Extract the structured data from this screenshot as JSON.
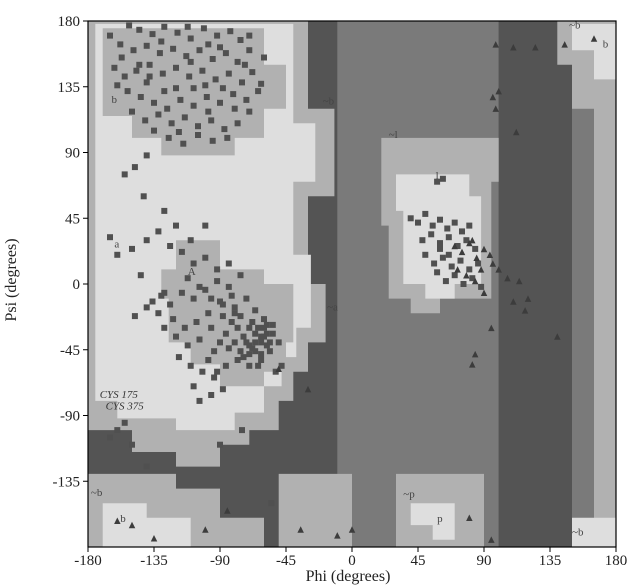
{
  "chart_data": {
    "type": "scatter",
    "title": "",
    "xlabel": "Phi (degrees)",
    "ylabel": "Psi (degrees)",
    "xlim": [
      -180,
      180
    ],
    "ylim": [
      -180,
      180
    ],
    "xticks": [
      -180,
      -135,
      -90,
      -45,
      0,
      45,
      90,
      135,
      180
    ],
    "yticks": [
      -135,
      -90,
      -45,
      0,
      45,
      90,
      135,
      180
    ],
    "grid": false,
    "legend": "none",
    "colors": {
      "most_favoured": "#545454",
      "additional": "#7a7a7a",
      "generous": "#b1b1b1",
      "disallowed": "#dedede",
      "residue_square": "#505050",
      "glycine_triangle": "#3c3c3c",
      "axis": "#000000",
      "region_label": "#444444"
    },
    "region_labels": [
      {
        "text": "b",
        "phi": -164,
        "psi": 124
      },
      {
        "text": "~b",
        "phi": -20,
        "psi": 123
      },
      {
        "text": "~l",
        "phi": 25,
        "psi": 100
      },
      {
        "text": "l",
        "phi": 57,
        "psi": 72
      },
      {
        "text": "a",
        "phi": -162,
        "psi": 25
      },
      {
        "text": "A",
        "phi": -112,
        "psi": 6
      },
      {
        "text": "~a",
        "phi": -17,
        "psi": -18
      },
      {
        "text": "~b",
        "phi": -178,
        "psi": -145
      },
      {
        "text": "b",
        "phi": -158,
        "psi": -163
      },
      {
        "text": "~p",
        "phi": 35,
        "psi": -146
      },
      {
        "text": "p",
        "phi": 58,
        "psi": -163
      },
      {
        "text": "~b",
        "phi": 150,
        "psi": -172
      },
      {
        "text": "~b",
        "phi": 148,
        "psi": 175
      },
      {
        "text": "b",
        "phi": 171,
        "psi": 162
      }
    ],
    "annotations": [
      {
        "text": "CYS 175",
        "phi": -172,
        "psi": -78
      },
      {
        "text": "CYS 375",
        "phi": -168,
        "psi": -86
      }
    ],
    "series": [
      {
        "marker": "square",
        "points": [
          [
            -152,
            177
          ],
          [
            -145,
            174
          ],
          [
            -136,
            171
          ],
          [
            -128,
            176
          ],
          [
            -119,
            172
          ],
          [
            -110,
            168
          ],
          [
            -101,
            175
          ],
          [
            -92,
            170
          ],
          [
            -83,
            173
          ],
          [
            -76,
            167
          ],
          [
            -70,
            160
          ],
          [
            -78,
            152
          ],
          [
            -86,
            158
          ],
          [
            -95,
            154
          ],
          [
            -104,
            160
          ],
          [
            -113,
            156
          ],
          [
            -122,
            161
          ],
          [
            -131,
            158
          ],
          [
            -140,
            163
          ],
          [
            -149,
            160
          ],
          [
            -157,
            155
          ],
          [
            -162,
            148
          ],
          [
            -155,
            142
          ],
          [
            -147,
            146
          ],
          [
            -138,
            150
          ],
          [
            -129,
            144
          ],
          [
            -120,
            148
          ],
          [
            -111,
            142
          ],
          [
            -102,
            146
          ],
          [
            -93,
            140
          ],
          [
            -84,
            144
          ],
          [
            -75,
            138
          ],
          [
            -68,
            145
          ],
          [
            -64,
            132
          ],
          [
            -72,
            126
          ],
          [
            -81,
            130
          ],
          [
            -90,
            124
          ],
          [
            -99,
            128
          ],
          [
            -108,
            122
          ],
          [
            -117,
            126
          ],
          [
            -126,
            120
          ],
          [
            -135,
            124
          ],
          [
            -144,
            128
          ],
          [
            -153,
            132
          ],
          [
            -160,
            136
          ],
          [
            -150,
            118
          ],
          [
            -141,
            112
          ],
          [
            -132,
            116
          ],
          [
            -123,
            110
          ],
          [
            -114,
            114
          ],
          [
            -105,
            108
          ],
          [
            -96,
            112
          ],
          [
            -87,
            106
          ],
          [
            -78,
            110
          ],
          [
            -70,
            118
          ],
          [
            -85,
            100
          ],
          [
            -95,
            98
          ],
          [
            -105,
            102
          ],
          [
            -115,
            96
          ],
          [
            -125,
            100
          ],
          [
            -135,
            105
          ],
          [
            -110,
            152
          ],
          [
            -100,
            136
          ],
          [
            -120,
            134
          ],
          [
            -140,
            138
          ],
          [
            -130,
            166
          ],
          [
            -90,
            162
          ],
          [
            -80,
            120
          ],
          [
            -145,
            150
          ],
          [
            -165,
            170
          ],
          [
            -118,
            104
          ],
          [
            -98,
            118
          ],
          [
            -128,
            132
          ],
          [
            -108,
            134
          ],
          [
            -88,
            134
          ],
          [
            -138,
            142
          ],
          [
            -158,
            164
          ],
          [
            -112,
            176
          ],
          [
            -73,
            150
          ],
          [
            -62,
            137
          ],
          [
            -98,
            164
          ],
          [
            -60,
            155
          ],
          [
            -70,
            170
          ],
          [
            -148,
            80
          ],
          [
            -155,
            75
          ],
          [
            -142,
            60
          ],
          [
            -128,
            50
          ],
          [
            -165,
            32
          ],
          [
            -160,
            20
          ],
          [
            -150,
            24
          ],
          [
            -140,
            30
          ],
          [
            -132,
            36
          ],
          [
            -124,
            26
          ],
          [
            -116,
            22
          ],
          [
            -108,
            14
          ],
          [
            -100,
            18
          ],
          [
            -92,
            10
          ],
          [
            -84,
            14
          ],
          [
            -76,
            6
          ],
          [
            -84,
            -2
          ],
          [
            -92,
            2
          ],
          [
            -100,
            -4
          ],
          [
            -108,
            -10
          ],
          [
            -116,
            -6
          ],
          [
            -124,
            -14
          ],
          [
            -132,
            -20
          ],
          [
            -140,
            -16
          ],
          [
            -148,
            -22
          ],
          [
            -128,
            -30
          ],
          [
            -120,
            -36
          ],
          [
            -112,
            -42
          ],
          [
            -104,
            -38
          ],
          [
            -96,
            -30
          ],
          [
            -88,
            -22
          ],
          [
            -80,
            -16
          ],
          [
            -72,
            -10
          ],
          [
            -66,
            -18
          ],
          [
            -60,
            -24
          ],
          [
            -54,
            -28
          ],
          [
            -58,
            -34
          ],
          [
            -62,
            -40
          ],
          [
            -66,
            -46
          ],
          [
            -70,
            -42
          ],
          [
            -74,
            -36
          ],
          [
            -78,
            -30
          ],
          [
            -82,
            -26
          ],
          [
            -86,
            -34
          ],
          [
            -90,
            -40
          ],
          [
            -94,
            -46
          ],
          [
            -98,
            -52
          ],
          [
            -86,
            -56
          ],
          [
            -78,
            -52
          ],
          [
            -70,
            -56
          ],
          [
            -62,
            -52
          ],
          [
            -56,
            -46
          ],
          [
            -50,
            -40
          ],
          [
            -48,
            -56
          ],
          [
            -52,
            -60
          ],
          [
            -64,
            -30
          ],
          [
            -68,
            -26
          ],
          [
            -60,
            -36
          ],
          [
            -72,
            -40
          ],
          [
            -76,
            -46
          ],
          [
            -66,
            -34
          ],
          [
            -58,
            -42
          ],
          [
            -62,
            -48
          ],
          [
            -54,
            -34
          ],
          [
            -70,
            -30
          ],
          [
            -74,
            -50
          ],
          [
            -64,
            -56
          ],
          [
            -68,
            -44
          ],
          [
            -60,
            -30
          ],
          [
            -56,
            -40
          ],
          [
            -80,
            -40
          ],
          [
            -84,
            -44
          ],
          [
            -58,
            -28
          ],
          [
            -66,
            -40
          ],
          [
            -62,
            -36
          ],
          [
            -70,
            -48
          ],
          [
            -76,
            -22
          ],
          [
            -82,
            -8
          ],
          [
            -90,
            -12
          ],
          [
            -98,
            -20
          ],
          [
            -106,
            -26
          ],
          [
            -114,
            -30
          ],
          [
            -122,
            -24
          ],
          [
            -130,
            -8
          ],
          [
            -118,
            -50
          ],
          [
            -110,
            -56
          ],
          [
            -102,
            -60
          ],
          [
            -94,
            -64
          ],
          [
            -88,
            -72
          ],
          [
            -96,
            -76
          ],
          [
            -104,
            -80
          ],
          [
            -128,
            -6
          ],
          [
            -136,
            -12
          ],
          [
            -144,
            6
          ],
          [
            -112,
            4
          ],
          [
            -104,
            -2
          ],
          [
            -96,
            -10
          ],
          [
            -88,
            -14
          ],
          [
            -80,
            -20
          ],
          [
            -100,
            40
          ],
          [
            -110,
            30
          ],
          [
            -120,
            40
          ],
          [
            -140,
            88
          ],
          [
            -108,
            -70
          ],
          [
            -92,
            -60
          ],
          [
            -160,
            -100
          ],
          [
            -155,
            -95
          ],
          [
            -165,
            -105
          ],
          [
            -150,
            -110
          ],
          [
            -140,
            -125
          ],
          [
            -90,
            -110
          ],
          [
            -75,
            -100
          ],
          [
            -55,
            -150
          ],
          [
            40,
            45
          ],
          [
            45,
            42
          ],
          [
            50,
            48
          ],
          [
            55,
            40
          ],
          [
            60,
            44
          ],
          [
            65,
            38
          ],
          [
            70,
            42
          ],
          [
            75,
            36
          ],
          [
            80,
            40
          ],
          [
            48,
            30
          ],
          [
            54,
            34
          ],
          [
            60,
            28
          ],
          [
            66,
            32
          ],
          [
            72,
            26
          ],
          [
            78,
            30
          ],
          [
            84,
            24
          ],
          [
            50,
            20
          ],
          [
            56,
            14
          ],
          [
            62,
            18
          ],
          [
            68,
            12
          ],
          [
            74,
            16
          ],
          [
            80,
            10
          ],
          [
            86,
            14
          ],
          [
            58,
            8
          ],
          [
            64,
            2
          ],
          [
            70,
            6
          ],
          [
            76,
            0
          ],
          [
            82,
            4
          ],
          [
            88,
            -2
          ],
          [
            60,
            24
          ],
          [
            66,
            20
          ],
          [
            58,
            70
          ],
          [
            62,
            72
          ]
        ]
      },
      {
        "marker": "triangle",
        "points": [
          [
            98,
            164
          ],
          [
            110,
            162
          ],
          [
            125,
            162
          ],
          [
            145,
            164
          ],
          [
            165,
            168
          ],
          [
            96,
            128
          ],
          [
            100,
            132
          ],
          [
            98,
            120
          ],
          [
            112,
            104
          ],
          [
            70,
            26
          ],
          [
            75,
            22
          ],
          [
            80,
            28
          ],
          [
            85,
            18
          ],
          [
            90,
            24
          ],
          [
            72,
            10
          ],
          [
            78,
            6
          ],
          [
            84,
            2
          ],
          [
            90,
            -6
          ],
          [
            82,
            30
          ],
          [
            94,
            20
          ],
          [
            88,
            10
          ],
          [
            96,
            14
          ],
          [
            100,
            10
          ],
          [
            106,
            4
          ],
          [
            114,
            2
          ],
          [
            120,
            -10
          ],
          [
            110,
            -12
          ],
          [
            118,
            -18
          ],
          [
            95,
            -30
          ],
          [
            140,
            -36
          ],
          [
            82,
            -55
          ],
          [
            84,
            -48
          ],
          [
            -50,
            -58
          ],
          [
            -30,
            -72
          ],
          [
            -160,
            -162
          ],
          [
            -150,
            -165
          ],
          [
            -135,
            -174
          ],
          [
            -85,
            -155
          ],
          [
            -100,
            -168
          ],
          [
            -35,
            -168
          ],
          [
            -10,
            -172
          ],
          [
            0,
            -168
          ],
          [
            80,
            -160
          ],
          [
            95,
            -175
          ]
        ]
      }
    ]
  }
}
